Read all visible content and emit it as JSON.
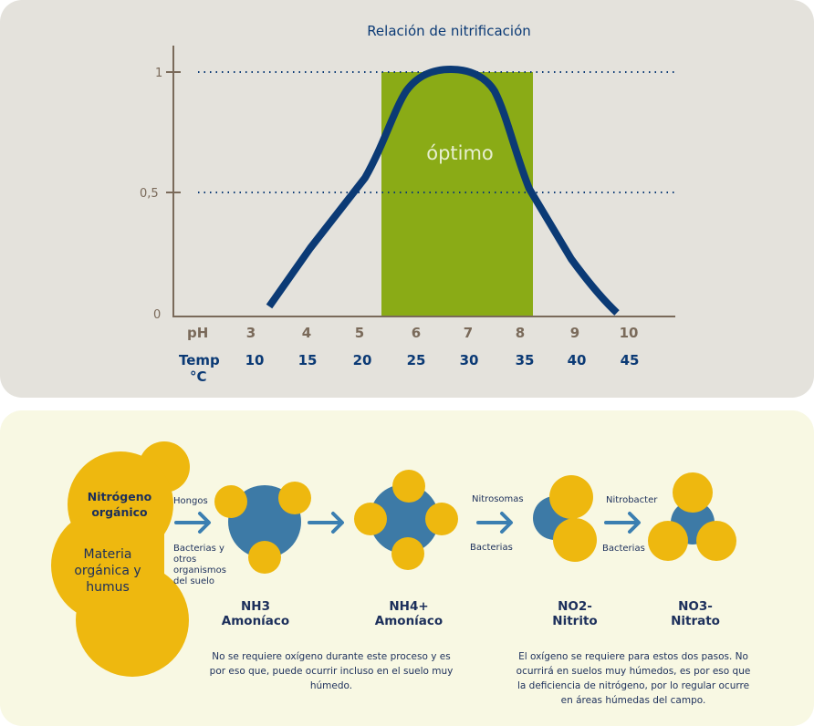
{
  "chart": {
    "title": "Relación de nitrificación",
    "optimal_label": "óptimo",
    "y_ticks": [
      "0",
      "0,5",
      "1"
    ],
    "ph_label": "pH",
    "temp_label_1": "Temp",
    "temp_label_2": "°C",
    "ph_ticks": [
      "3",
      "4",
      "5",
      "6",
      "7",
      "8",
      "9",
      "10"
    ],
    "temp_ticks": [
      "10",
      "15",
      "20",
      "25",
      "30",
      "35",
      "40",
      "45"
    ]
  },
  "chart_data": {
    "type": "line",
    "title": "Relación de nitrificación",
    "x": [
      3,
      4,
      5,
      5.4,
      5.8,
      6,
      6.6,
      7,
      7.3,
      7.6,
      8,
      8.5,
      9,
      9.8
    ],
    "series": [
      {
        "values": [
          0.03,
          0.3,
          0.56,
          0.7,
          0.85,
          0.92,
          0.99,
          1.0,
          0.98,
          0.9,
          0.52,
          0.35,
          0.22,
          0.0
        ]
      }
    ],
    "ylim": [
      0,
      1
    ],
    "xlim": [
      3,
      10
    ],
    "optimal_range_ph": [
      5.5,
      8
    ],
    "grid": "dotted at 0,5 and 1"
  },
  "cycle": {
    "source_1": "Nitrógeno orgánico",
    "source_2": "Materia orgánica y humus",
    "step1_top": "Hongos",
    "step1_bottom": "Bacterias y otros organismos del suelo",
    "step2_top": "Nitrosomas",
    "step2_bottom": "Bacterias",
    "step3_top": "Nitrobacter",
    "step3_bottom": "Bacterias",
    "nh3": "NH3",
    "nh3_name": "Amoníaco",
    "nh4": "NH4+",
    "nh4_name": "Amoníaco",
    "no2": "NO2-",
    "no2_name": "Nitrito",
    "no3": "NO3-",
    "no3_name": "Nitrato",
    "note_left": "No se requiere oxígeno durante este proceso y es por eso que, puede ocurrir incluso en el suelo muy húmedo.",
    "note_right": "El oxígeno se requiere para estos dos pasos. No ocurrirá en suelos muy húmedos, es por eso que la deficiencia de nitrógeno, por lo regular ocurre en áreas húmedas del campo."
  },
  "colors": {
    "blue": "#0b3a75",
    "green": "#8aab16",
    "yellow": "#eeb80f",
    "molecule_blue": "#3d7aa6",
    "arrow": "#3b7fb1"
  }
}
